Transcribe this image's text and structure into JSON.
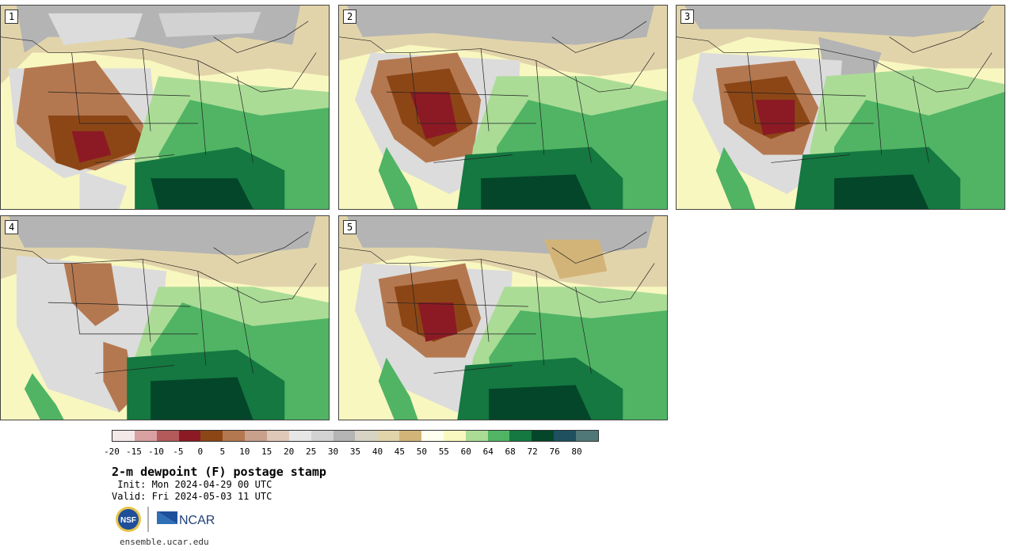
{
  "panels": [
    {
      "number": "1"
    },
    {
      "number": "2"
    },
    {
      "number": "3"
    },
    {
      "number": "4"
    },
    {
      "number": "5"
    }
  ],
  "colorbar": {
    "colors": [
      "#f4e8e8",
      "#d8a0a0",
      "#b45a5a",
      "#8c1a24",
      "#8c4616",
      "#b47850",
      "#c8a08c",
      "#e0c8b8",
      "#e6e6e6",
      "#d2d2d2",
      "#b4b4b4",
      "#d6d2c4",
      "#e2d4aa",
      "#d2b478",
      "#fffff0",
      "#f8f8c0",
      "#aadc96",
      "#50b464",
      "#147840",
      "#04462a",
      "#1e5060",
      "#507878"
    ],
    "tick_labels": [
      "-20",
      "-15",
      "-10",
      "-5",
      "0",
      "5",
      "10",
      "15",
      "20",
      "25",
      "30",
      "35",
      "40",
      "45",
      "50",
      "55",
      "60",
      "64",
      "68",
      "72",
      "76",
      "80"
    ]
  },
  "text": {
    "title": "2-m dewpoint (F) postage stamp",
    "init": " Init: Mon 2024-04-29 00 UTC",
    "valid": "Valid: Fri 2024-05-03 11 UTC",
    "url": "ensemble.ucar.edu"
  },
  "logos": {
    "nsf": "NSF",
    "ncar": "NCAR"
  },
  "map_colors": {
    "pale_yellow": "#f8f7c0",
    "light_gray": "#dcdcdc",
    "gray": "#b4b4b4",
    "tan": "#d2b478",
    "light_tan": "#e2d4aa",
    "brown": "#b47850",
    "dark_brown": "#8c4616",
    "maroon": "#8c1a24",
    "light_green": "#aadc96",
    "green": "#50b464",
    "dark_green": "#147840",
    "darkest_green": "#04462a"
  }
}
